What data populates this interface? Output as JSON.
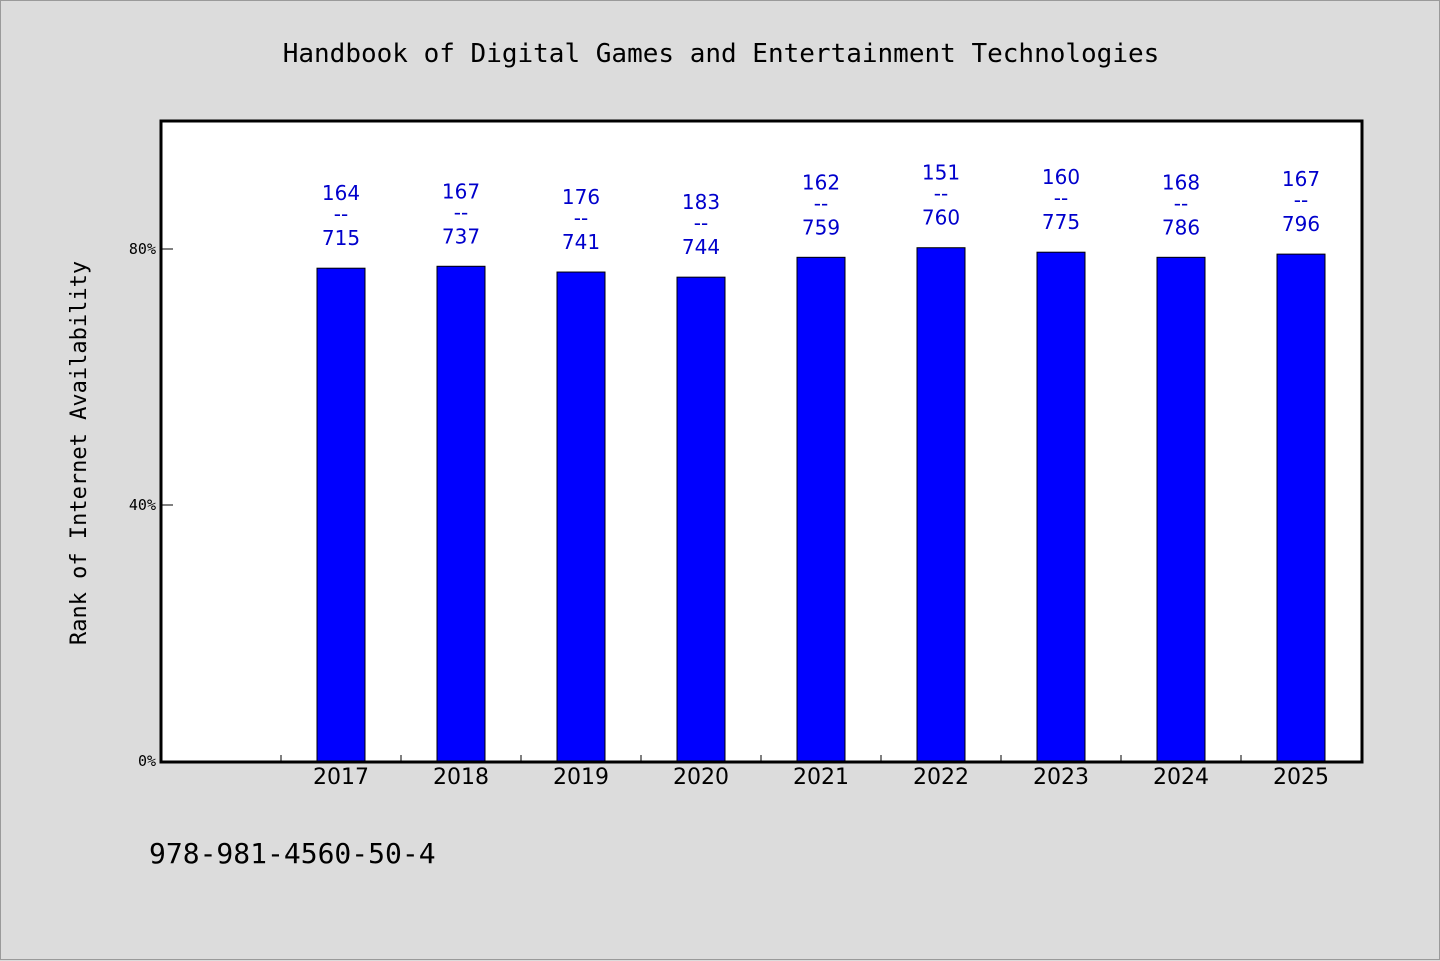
{
  "chart_data": {
    "type": "bar",
    "title": "Handbook of Digital Games and Entertainment Technologies",
    "ylabel": "Rank of Internet Availability",
    "xlabel": "",
    "categories": [
      "2017",
      "2018",
      "2019",
      "2020",
      "2021",
      "2022",
      "2023",
      "2024",
      "2025"
    ],
    "values": [
      0.77,
      0.773,
      0.764,
      0.756,
      0.787,
      0.802,
      0.795,
      0.787,
      0.792
    ],
    "data_labels": [
      {
        "top": "164",
        "mid": "--",
        "bottom": "715"
      },
      {
        "top": "167",
        "mid": "--",
        "bottom": "737"
      },
      {
        "top": "176",
        "mid": "--",
        "bottom": "741"
      },
      {
        "top": "183",
        "mid": "--",
        "bottom": "744"
      },
      {
        "top": "162",
        "mid": "--",
        "bottom": "759"
      },
      {
        "top": "151",
        "mid": "--",
        "bottom": "760"
      },
      {
        "top": "160",
        "mid": "--",
        "bottom": "775"
      },
      {
        "top": "168",
        "mid": "--",
        "bottom": "786"
      },
      {
        "top": "167",
        "mid": "--",
        "bottom": "796"
      }
    ],
    "yticks": [
      {
        "value": 0,
        "label": "0%"
      },
      {
        "value": 0.4,
        "label": "40%"
      },
      {
        "value": 0.8,
        "label": "80%"
      }
    ],
    "ylim": [
      0,
      1.0
    ],
    "grid": false,
    "bar_color": "#0000ff",
    "label_color": "#0000cc",
    "plot_background": "#ffffff",
    "page_background": "#dcdcdc"
  },
  "footer": {
    "isbn": "978-981-4560-50-4"
  }
}
